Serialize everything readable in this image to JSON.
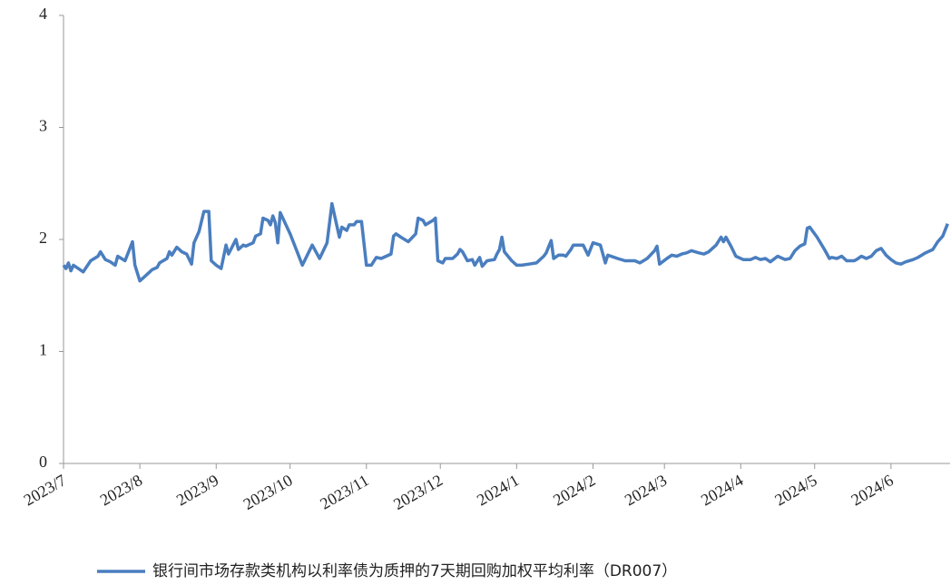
{
  "chart_data": {
    "type": "line",
    "x": [
      0,
      1,
      2,
      3,
      4,
      6,
      8,
      11,
      14,
      15,
      17,
      19,
      21,
      22,
      25,
      28,
      29,
      31,
      33,
      36,
      38,
      39,
      42,
      43,
      44,
      46,
      48,
      50,
      52,
      53,
      55,
      57,
      59,
      60,
      62,
      64,
      66,
      67,
      70,
      71,
      73,
      74,
      77,
      78,
      80,
      81,
      83,
      84,
      85,
      86,
      87,
      88,
      92,
      97,
      101,
      104,
      107,
      109,
      112,
      113,
      115,
      116,
      118,
      119,
      121,
      123,
      125,
      127,
      129,
      133,
      134,
      135,
      137,
      140,
      143,
      144,
      146,
      147,
      150,
      151,
      152,
      154,
      155,
      158,
      160,
      161,
      162,
      164,
      166,
      167,
      169,
      170,
      172,
      175,
      176,
      177,
      178,
      179,
      182,
      184,
      186,
      189,
      192,
      195,
      196,
      198,
      199,
      201,
      203,
      204,
      206,
      207,
      211,
      213,
      215,
      218,
      220,
      221,
      225,
      228,
      232,
      234,
      237,
      240,
      241,
      242,
      245,
      247,
      249,
      251,
      253,
      255,
      258,
      260,
      262,
      265,
      267,
      268,
      269,
      271,
      273,
      276,
      279,
      281,
      283,
      285,
      287,
      290,
      293,
      295,
      297,
      299,
      301,
      302,
      303,
      306,
      309,
      311,
      312,
      314,
      316,
      318,
      321,
      322,
      324,
      326,
      328,
      330,
      332,
      334,
      336,
      338,
      340,
      342,
      345,
      347,
      350,
      353,
      355,
      357,
      359
    ],
    "series": [
      {
        "name": "银行间市场存款类机构以利率债为质押的7天期回购加权平均利率（DR007）",
        "color": "#4a7ebf",
        "values": [
          1.77,
          1.74,
          1.79,
          1.72,
          1.77,
          1.74,
          1.71,
          1.81,
          1.85,
          1.89,
          1.82,
          1.8,
          1.77,
          1.85,
          1.81,
          1.98,
          1.77,
          1.63,
          1.67,
          1.73,
          1.75,
          1.79,
          1.83,
          1.89,
          1.86,
          1.93,
          1.89,
          1.87,
          1.78,
          1.97,
          2.07,
          2.25,
          2.25,
          1.81,
          1.77,
          1.74,
          1.95,
          1.87,
          2.0,
          1.91,
          1.95,
          1.94,
          1.97,
          2.03,
          2.05,
          2.19,
          2.17,
          2.13,
          2.21,
          2.15,
          1.97,
          2.24,
          2.05,
          1.77,
          1.95,
          1.83,
          1.97,
          2.32,
          2.02,
          2.11,
          2.08,
          2.13,
          2.13,
          2.16,
          2.16,
          1.77,
          1.77,
          1.84,
          1.83,
          1.87,
          2.03,
          2.05,
          2.02,
          1.98,
          2.05,
          2.19,
          2.17,
          2.13,
          2.17,
          2.19,
          1.81,
          1.79,
          1.83,
          1.83,
          1.87,
          1.91,
          1.89,
          1.81,
          1.82,
          1.77,
          1.84,
          1.76,
          1.81,
          1.82,
          1.87,
          1.91,
          2.02,
          1.89,
          1.81,
          1.77,
          1.77,
          1.78,
          1.79,
          1.85,
          1.88,
          1.99,
          1.83,
          1.86,
          1.86,
          1.85,
          1.91,
          1.95,
          1.95,
          1.86,
          1.97,
          1.95,
          1.79,
          1.86,
          1.83,
          1.81,
          1.81,
          1.79,
          1.83,
          1.9,
          1.94,
          1.78,
          1.83,
          1.86,
          1.85,
          1.87,
          1.88,
          1.9,
          1.88,
          1.87,
          1.89,
          1.95,
          2.02,
          1.98,
          2.02,
          1.94,
          1.85,
          1.82,
          1.82,
          1.84,
          1.82,
          1.83,
          1.8,
          1.85,
          1.82,
          1.83,
          1.9,
          1.94,
          1.96,
          2.1,
          2.11,
          2.02,
          1.91,
          1.83,
          1.84,
          1.83,
          1.85,
          1.81,
          1.81,
          1.82,
          1.85,
          1.83,
          1.85,
          1.9,
          1.92,
          1.86,
          1.82,
          1.79,
          1.78,
          1.8,
          1.82,
          1.84,
          1.88,
          1.91,
          1.98,
          2.03,
          2.14
        ]
      }
    ],
    "xlim": [
      0,
      360
    ],
    "xticks": [
      {
        "value": 0,
        "label": "2023/7"
      },
      {
        "value": 31,
        "label": "2023/8"
      },
      {
        "value": 62,
        "label": "2023/9"
      },
      {
        "value": 92,
        "label": "2023/10"
      },
      {
        "value": 123,
        "label": "2023/11"
      },
      {
        "value": 153,
        "label": "2023/12"
      },
      {
        "value": 184,
        "label": "2024/1"
      },
      {
        "value": 215,
        "label": "2024/2"
      },
      {
        "value": 244,
        "label": "2024/3"
      },
      {
        "value": 275,
        "label": "2024/4"
      },
      {
        "value": 305,
        "label": "2024/5"
      },
      {
        "value": 336,
        "label": "2024/6"
      }
    ],
    "ylim": [
      0,
      4
    ],
    "yticks": [
      0,
      1,
      2,
      3,
      4
    ]
  }
}
